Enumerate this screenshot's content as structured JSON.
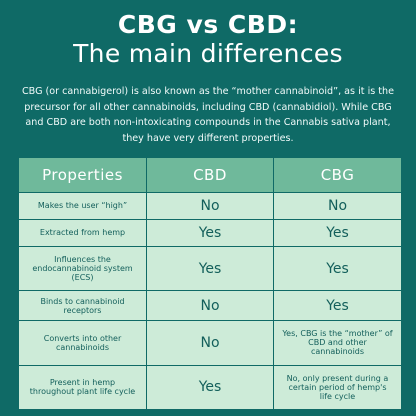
{
  "title": {
    "line1": "CBG vs CBD:",
    "line2": "The main differences"
  },
  "intro": "CBG (or cannabigerol) is also known as the “mother cannabinoid”, as it is the precursor for all other cannabinoids, including CBD (cannabidiol). While CBG and CBD are both non-intoxicating compounds in the Cannabis sativa plant, they have very different properties.",
  "table": {
    "headers": [
      "Properties",
      "CBD",
      "CBG"
    ],
    "rows": [
      {
        "property": "Makes the user “high”",
        "cbd": "No",
        "cbg": "No"
      },
      {
        "property": "Extracted from hemp",
        "cbd": "Yes",
        "cbg": "Yes"
      },
      {
        "property": "Influences the endocannabinoid system (ECS)",
        "cbd": "Yes",
        "cbg": "Yes"
      },
      {
        "property": "Binds to cannabinoid receptors",
        "cbd": "No",
        "cbg": "Yes"
      },
      {
        "property": "Converts into other cannabinoids",
        "cbd": "No",
        "cbg": "Yes, CBG is the “mother” of CBD and other cannabinoids"
      },
      {
        "property": "Present in hemp throughout plant life cycle",
        "cbd": "Yes",
        "cbg": "No, only present during a certain period of hemp's life cycle"
      }
    ]
  },
  "colors": {
    "background": "#0f6a66",
    "header_fill": "#6fb99b",
    "cell_fill": "#cdebd8",
    "cell_text": "#135f5b"
  }
}
